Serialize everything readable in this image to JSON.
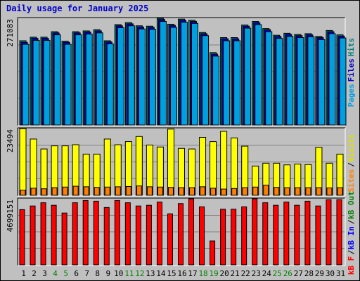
{
  "chart_data": {
    "type": "bar",
    "title": "Daily usage for January 2025",
    "categories": [
      "1",
      "2",
      "3",
      "4",
      "5",
      "6",
      "7",
      "8",
      "9",
      "10",
      "11",
      "12",
      "13",
      "14",
      "15",
      "16",
      "17",
      "18",
      "19",
      "20",
      "21",
      "22",
      "23",
      "24",
      "25",
      "26",
      "27",
      "28",
      "29",
      "30",
      "31"
    ],
    "weekend_days": [
      "4",
      "5",
      "11",
      "12",
      "18",
      "19",
      "25",
      "26"
    ],
    "panels": [
      {
        "id": "hits",
        "max_label": "271083",
        "ymax": 271083,
        "side_label": [
          "Pages",
          "Files",
          "Hits"
        ],
        "side_colors": [
          "#00a0e0",
          "#0000c0",
          "#008080"
        ],
        "series": [
          {
            "name": "Hits",
            "color": "#008080",
            "values": [
              214000,
              223000,
              223000,
              237000,
              213000,
              237000,
              239000,
              242000,
              214000,
              255000,
              260000,
              252000,
              251000,
              271083,
              256000,
              269000,
              266000,
              235000,
              184000,
              222000,
              222000,
              254000,
              263000,
              245000,
              228000,
              233000,
              230000,
              232000,
              225000,
              240000,
              229000
            ]
          },
          {
            "name": "Files",
            "color": "#0000c0",
            "values": [
              210000,
              220000,
              220000,
              234000,
              210000,
              234000,
              236000,
              239000,
              211000,
              252000,
              257000,
              249000,
              248000,
              268000,
              253000,
              266000,
              263000,
              232000,
              180000,
              219000,
              219000,
              251000,
              260000,
              242000,
              225000,
              230000,
              227000,
              229000,
              222000,
              237000,
              226000
            ]
          },
          {
            "name": "Pages",
            "color": "#00a0e0",
            "values": [
              205000,
              215000,
              215000,
              229000,
              205000,
              229000,
              231000,
              234000,
              206000,
              247000,
              252000,
              244000,
              243000,
              263000,
              248000,
              261000,
              258000,
              227000,
              175000,
              214000,
              214000,
              246000,
              255000,
              237000,
              220000,
              225000,
              222000,
              224000,
              217000,
              232000,
              221000
            ]
          }
        ]
      },
      {
        "id": "visits",
        "max_label": "23494",
        "ymax": 23494,
        "side_label": [
          "Sites",
          "/",
          "Visits"
        ],
        "side_colors": [
          "#ff8000",
          "#000000",
          "#e0e000"
        ],
        "series": [
          {
            "name": "Visits",
            "color": "#ffff00",
            "values": [
              23494,
              19800,
              16300,
              17400,
              17400,
              17800,
              14500,
              14500,
              19800,
              17800,
              18900,
              20700,
              17700,
              17000,
              23300,
              16500,
              16300,
              20400,
              18900,
              22500,
              20200,
              17300,
              10300,
              11300,
              11300,
              10700,
              11000,
              10800,
              16900,
              11300,
              14500
            ]
          },
          {
            "name": "Sites",
            "color": "#ff8000",
            "values": [
              1800,
              2500,
              2300,
              2700,
              2900,
              3200,
              3000,
              2800,
              2900,
              3000,
              3100,
              3300,
              3000,
              2900,
              2800,
              2700,
              2700,
              3000,
              2500,
              2200,
              2400,
              2700,
              2900,
              3600,
              2800,
              2700,
              2700,
              2700,
              2700,
              2600,
              2700
            ]
          }
        ]
      },
      {
        "id": "kbytes",
        "max_label": "4699151",
        "ymax": 4699151,
        "side_label": [
          "kB F",
          "/",
          "kB In",
          "/",
          "kB Out"
        ],
        "side_colors": [
          "#ff0000",
          "#000000",
          "#0000ff",
          "#000000",
          "#008000"
        ],
        "series": [
          {
            "name": "kB F",
            "color": "#ff0000",
            "values": [
              3930000,
              4190000,
              4420000,
              4240000,
              3690000,
              4420000,
              4580000,
              4530000,
              4080000,
              4580000,
              4420000,
              4190000,
              4240000,
              4470000,
              3630000,
              4360000,
              4700000,
              4130000,
              1700000,
              3960000,
              3960000,
              4130000,
              4699151,
              4420000,
              4240000,
              4470000,
              4240000,
              4530000,
              4190000,
              4640000,
              4640000
            ]
          }
        ]
      }
    ]
  }
}
